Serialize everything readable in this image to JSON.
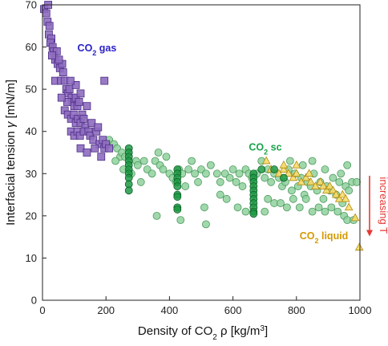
{
  "chart_data": {
    "type": "scatter",
    "title": "",
    "xlabel_parts": [
      "Density of CO",
      "2",
      " ρ [kg/m",
      "3",
      "]"
    ],
    "ylabel_parts": [
      "Interfacial tension ",
      "γ",
      " [mN/m]"
    ],
    "xlim": [
      0,
      1000
    ],
    "ylim": [
      0,
      70
    ],
    "xticks": [
      0,
      200,
      400,
      600,
      800,
      1000
    ],
    "yticks": [
      0,
      10,
      20,
      30,
      40,
      50,
      60,
      70
    ],
    "grid": false,
    "colors": {
      "gas_fill": "#8e6cbf",
      "gas_stroke": "#4b2c86",
      "sc_fill": "#8fd19e",
      "sc_stroke": "#4d9a5d",
      "sc_dark_fill": "#1f9a44",
      "sc_dark_stroke": "#0d5f28",
      "liquid_fill": "#f6dc6b",
      "liquid_stroke": "#b08a10",
      "gas_text": "#2a20c8",
      "sc_text": "#16a34a",
      "liquid_text": "#d49a00",
      "arrow": "#e53935"
    },
    "annotations": {
      "gas": {
        "text": "CO",
        "sub": "2",
        "suffix": " gas",
        "x": 110,
        "y": 59
      },
      "sc": {
        "text": "CO",
        "sub": "2",
        "suffix": " sc",
        "x": 650,
        "y": 35.5
      },
      "liquid": {
        "text": "CO",
        "sub": "2",
        "suffix": " liquid",
        "x": 810,
        "y": 14.5
      },
      "arrow_label": "increasing T",
      "arrow": {
        "x": 1018,
        "y_start": 29.5,
        "y_end": 15.5
      }
    },
    "series": [
      {
        "name": "CO2 gas",
        "marker": "square",
        "points": [
          [
            5,
            69
          ],
          [
            12,
            68
          ],
          [
            18,
            70
          ],
          [
            16,
            66
          ],
          [
            22,
            65
          ],
          [
            20,
            63
          ],
          [
            28,
            62
          ],
          [
            25,
            61
          ],
          [
            32,
            60
          ],
          [
            36,
            59
          ],
          [
            45,
            59
          ],
          [
            40,
            57
          ],
          [
            48,
            56
          ],
          [
            55,
            55
          ],
          [
            62,
            56
          ],
          [
            40,
            52
          ],
          [
            58,
            52
          ],
          [
            65,
            54
          ],
          [
            70,
            52
          ],
          [
            75,
            50
          ],
          [
            80,
            49
          ],
          [
            85,
            50
          ],
          [
            92,
            48
          ],
          [
            95,
            47
          ],
          [
            100,
            46
          ],
          [
            105,
            48
          ],
          [
            110,
            46
          ],
          [
            115,
            47
          ],
          [
            70,
            45
          ],
          [
            80,
            44
          ],
          [
            90,
            43
          ],
          [
            98,
            44
          ],
          [
            105,
            42
          ],
          [
            112,
            43
          ],
          [
            120,
            42
          ],
          [
            125,
            44
          ],
          [
            130,
            43
          ],
          [
            135,
            41
          ],
          [
            90,
            40
          ],
          [
            100,
            39
          ],
          [
            110,
            40
          ],
          [
            118,
            39
          ],
          [
            130,
            40
          ],
          [
            145,
            40
          ],
          [
            150,
            39
          ],
          [
            160,
            38
          ],
          [
            170,
            40
          ],
          [
            180,
            37
          ],
          [
            190,
            38
          ],
          [
            195,
            36
          ],
          [
            200,
            37
          ],
          [
            120,
            36
          ],
          [
            140,
            35
          ],
          [
            165,
            36
          ],
          [
            195,
            52
          ],
          [
            105,
            51
          ],
          [
            78,
            47
          ],
          [
            88,
            52
          ],
          [
            60,
            48
          ],
          [
            52,
            57
          ],
          [
            30,
            58
          ],
          [
            120,
            49
          ],
          [
            140,
            46
          ],
          [
            155,
            42
          ],
          [
            175,
            41
          ],
          [
            185,
            34
          ],
          [
            210,
            36
          ]
        ]
      },
      {
        "name": "CO2 sc",
        "marker": "circle",
        "points": [
          [
            210,
            38
          ],
          [
            225,
            37
          ],
          [
            235,
            36
          ],
          [
            245,
            34
          ],
          [
            250,
            35
          ],
          [
            230,
            33
          ],
          [
            255,
            31
          ],
          [
            260,
            34
          ],
          [
            280,
            30
          ],
          [
            295,
            33
          ],
          [
            300,
            32
          ],
          [
            310,
            28
          ],
          [
            320,
            33
          ],
          [
            330,
            31
          ],
          [
            345,
            30
          ],
          [
            355,
            33
          ],
          [
            365,
            35
          ],
          [
            370,
            32
          ],
          [
            380,
            31
          ],
          [
            390,
            34
          ],
          [
            400,
            30
          ],
          [
            410,
            29
          ],
          [
            420,
            28
          ],
          [
            430,
            31
          ],
          [
            440,
            30
          ],
          [
            450,
            27
          ],
          [
            460,
            31
          ],
          [
            470,
            33
          ],
          [
            480,
            30
          ],
          [
            490,
            28
          ],
          [
            500,
            31
          ],
          [
            515,
            30
          ],
          [
            530,
            32
          ],
          [
            550,
            30
          ],
          [
            560,
            28
          ],
          [
            575,
            30
          ],
          [
            590,
            29
          ],
          [
            600,
            31
          ],
          [
            610,
            28
          ],
          [
            620,
            30
          ],
          [
            630,
            27
          ],
          [
            640,
            31
          ],
          [
            650,
            30
          ],
          [
            660,
            29
          ],
          [
            675,
            30
          ],
          [
            690,
            33
          ],
          [
            700,
            29
          ],
          [
            710,
            31
          ],
          [
            720,
            28
          ],
          [
            730,
            30
          ],
          [
            745,
            29
          ],
          [
            755,
            27
          ],
          [
            765,
            28
          ],
          [
            775,
            31
          ],
          [
            785,
            26
          ],
          [
            795,
            30
          ],
          [
            805,
            27
          ],
          [
            815,
            29
          ],
          [
            825,
            25
          ],
          [
            835,
            28
          ],
          [
            845,
            27
          ],
          [
            855,
            30
          ],
          [
            865,
            26
          ],
          [
            875,
            28
          ],
          [
            885,
            24
          ],
          [
            895,
            27
          ],
          [
            905,
            26
          ],
          [
            915,
            29
          ],
          [
            925,
            25
          ],
          [
            935,
            28
          ],
          [
            945,
            23
          ],
          [
            955,
            27
          ],
          [
            965,
            26
          ],
          [
            975,
            28
          ],
          [
            990,
            28
          ],
          [
            710,
            24
          ],
          [
            730,
            23
          ],
          [
            750,
            23
          ],
          [
            770,
            22
          ],
          [
            790,
            24
          ],
          [
            810,
            22
          ],
          [
            830,
            24
          ],
          [
            850,
            21
          ],
          [
            870,
            22
          ],
          [
            890,
            21
          ],
          [
            910,
            22
          ],
          [
            930,
            21
          ],
          [
            950,
            20
          ],
          [
            960,
            19
          ],
          [
            980,
            19
          ],
          [
            360,
            20
          ],
          [
            435,
            19
          ],
          [
            515,
            18
          ],
          [
            510,
            22
          ],
          [
            615,
            22
          ],
          [
            640,
            21
          ],
          [
            700,
            21
          ],
          [
            560,
            25
          ],
          [
            580,
            24
          ],
          [
            780,
            33
          ],
          [
            820,
            32
          ],
          [
            850,
            33
          ],
          [
            890,
            31
          ],
          [
            940,
            30
          ],
          [
            960,
            32
          ]
        ]
      },
      {
        "name": "CO2 sc (dark)",
        "marker": "circle",
        "points": [
          [
            272,
            36
          ],
          [
            272,
            35
          ],
          [
            272,
            34
          ],
          [
            272,
            33
          ],
          [
            272,
            32
          ],
          [
            272,
            31
          ],
          [
            272,
            30
          ],
          [
            272,
            29
          ],
          [
            272,
            27.5
          ],
          [
            272,
            26
          ],
          [
            425,
            31
          ],
          [
            425,
            30
          ],
          [
            425,
            29
          ],
          [
            425,
            28
          ],
          [
            425,
            27
          ],
          [
            425,
            25
          ],
          [
            425,
            24.5
          ],
          [
            425,
            22
          ],
          [
            425,
            21.5
          ],
          [
            665,
            30
          ],
          [
            665,
            29
          ],
          [
            665,
            28
          ],
          [
            665,
            27
          ],
          [
            665,
            26
          ],
          [
            665,
            25
          ],
          [
            665,
            24
          ],
          [
            665,
            23
          ],
          [
            665,
            22
          ],
          [
            665,
            21
          ],
          [
            665,
            20.5
          ],
          [
            690,
            31
          ],
          [
            730,
            31
          ],
          [
            760,
            29
          ]
        ]
      },
      {
        "name": "CO2 liquid",
        "marker": "triangle",
        "points": [
          [
            705,
            33
          ],
          [
            720,
            31
          ],
          [
            745,
            30
          ],
          [
            760,
            31
          ],
          [
            775,
            30
          ],
          [
            790,
            29
          ],
          [
            800,
            30
          ],
          [
            815,
            28
          ],
          [
            830,
            29
          ],
          [
            845,
            28
          ],
          [
            860,
            27
          ],
          [
            875,
            28
          ],
          [
            885,
            27
          ],
          [
            895,
            26
          ],
          [
            905,
            27
          ],
          [
            915,
            26
          ],
          [
            925,
            25
          ],
          [
            935,
            24
          ],
          [
            945,
            25
          ],
          [
            955,
            24
          ],
          [
            965,
            22
          ],
          [
            985,
            19.5
          ],
          [
            998,
            12.5
          ],
          [
            760,
            32
          ],
          [
            800,
            32
          ],
          [
            840,
            30
          ]
        ]
      }
    ]
  }
}
